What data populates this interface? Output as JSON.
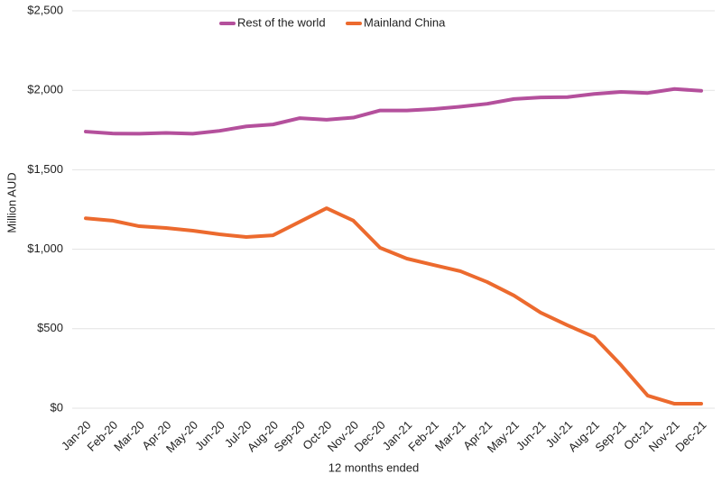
{
  "chart_data": {
    "type": "line",
    "x_label": "12 months ended",
    "y_label": "Million AUD",
    "categories": [
      "Jan-20",
      "Feb-20",
      "Mar-20",
      "Apr-20",
      "May-20",
      "Jun-20",
      "Jul-20",
      "Aug-20",
      "Sep-20",
      "Oct-20",
      "Nov-20",
      "Dec-20",
      "Jan-21",
      "Feb-21",
      "Mar-21",
      "Apr-21",
      "May-21",
      "Jun-21",
      "Jul-21",
      "Aug-21",
      "Sep-21",
      "Oct-21",
      "Nov-21",
      "Dec-21"
    ],
    "series": [
      {
        "name": "Rest of the world",
        "color": "#b4509c",
        "values": [
          1740,
          1728,
          1727,
          1732,
          1727,
          1745,
          1773,
          1785,
          1825,
          1815,
          1828,
          1873,
          1873,
          1882,
          1897,
          1915,
          1945,
          1955,
          1957,
          1977,
          1990,
          1983,
          2008,
          1997
        ]
      },
      {
        "name": "Mainland China",
        "color": "#ec6a2e",
        "values": [
          1195,
          1180,
          1145,
          1134,
          1117,
          1094,
          1077,
          1088,
          1173,
          1258,
          1180,
          1009,
          941,
          901,
          862,
          794,
          709,
          601,
          522,
          448,
          272,
          79,
          28,
          28
        ]
      }
    ],
    "ylim": [
      0,
      2500
    ],
    "yticks": [
      {
        "value": 0,
        "label": "$0"
      },
      {
        "value": 500,
        "label": "$500"
      },
      {
        "value": 1000,
        "label": "$1,000"
      },
      {
        "value": 1500,
        "label": "$1,500"
      },
      {
        "value": 2000,
        "label": "$2,000"
      },
      {
        "value": 2500,
        "label": "$2,500"
      }
    ],
    "grid": true,
    "legend": "top"
  }
}
